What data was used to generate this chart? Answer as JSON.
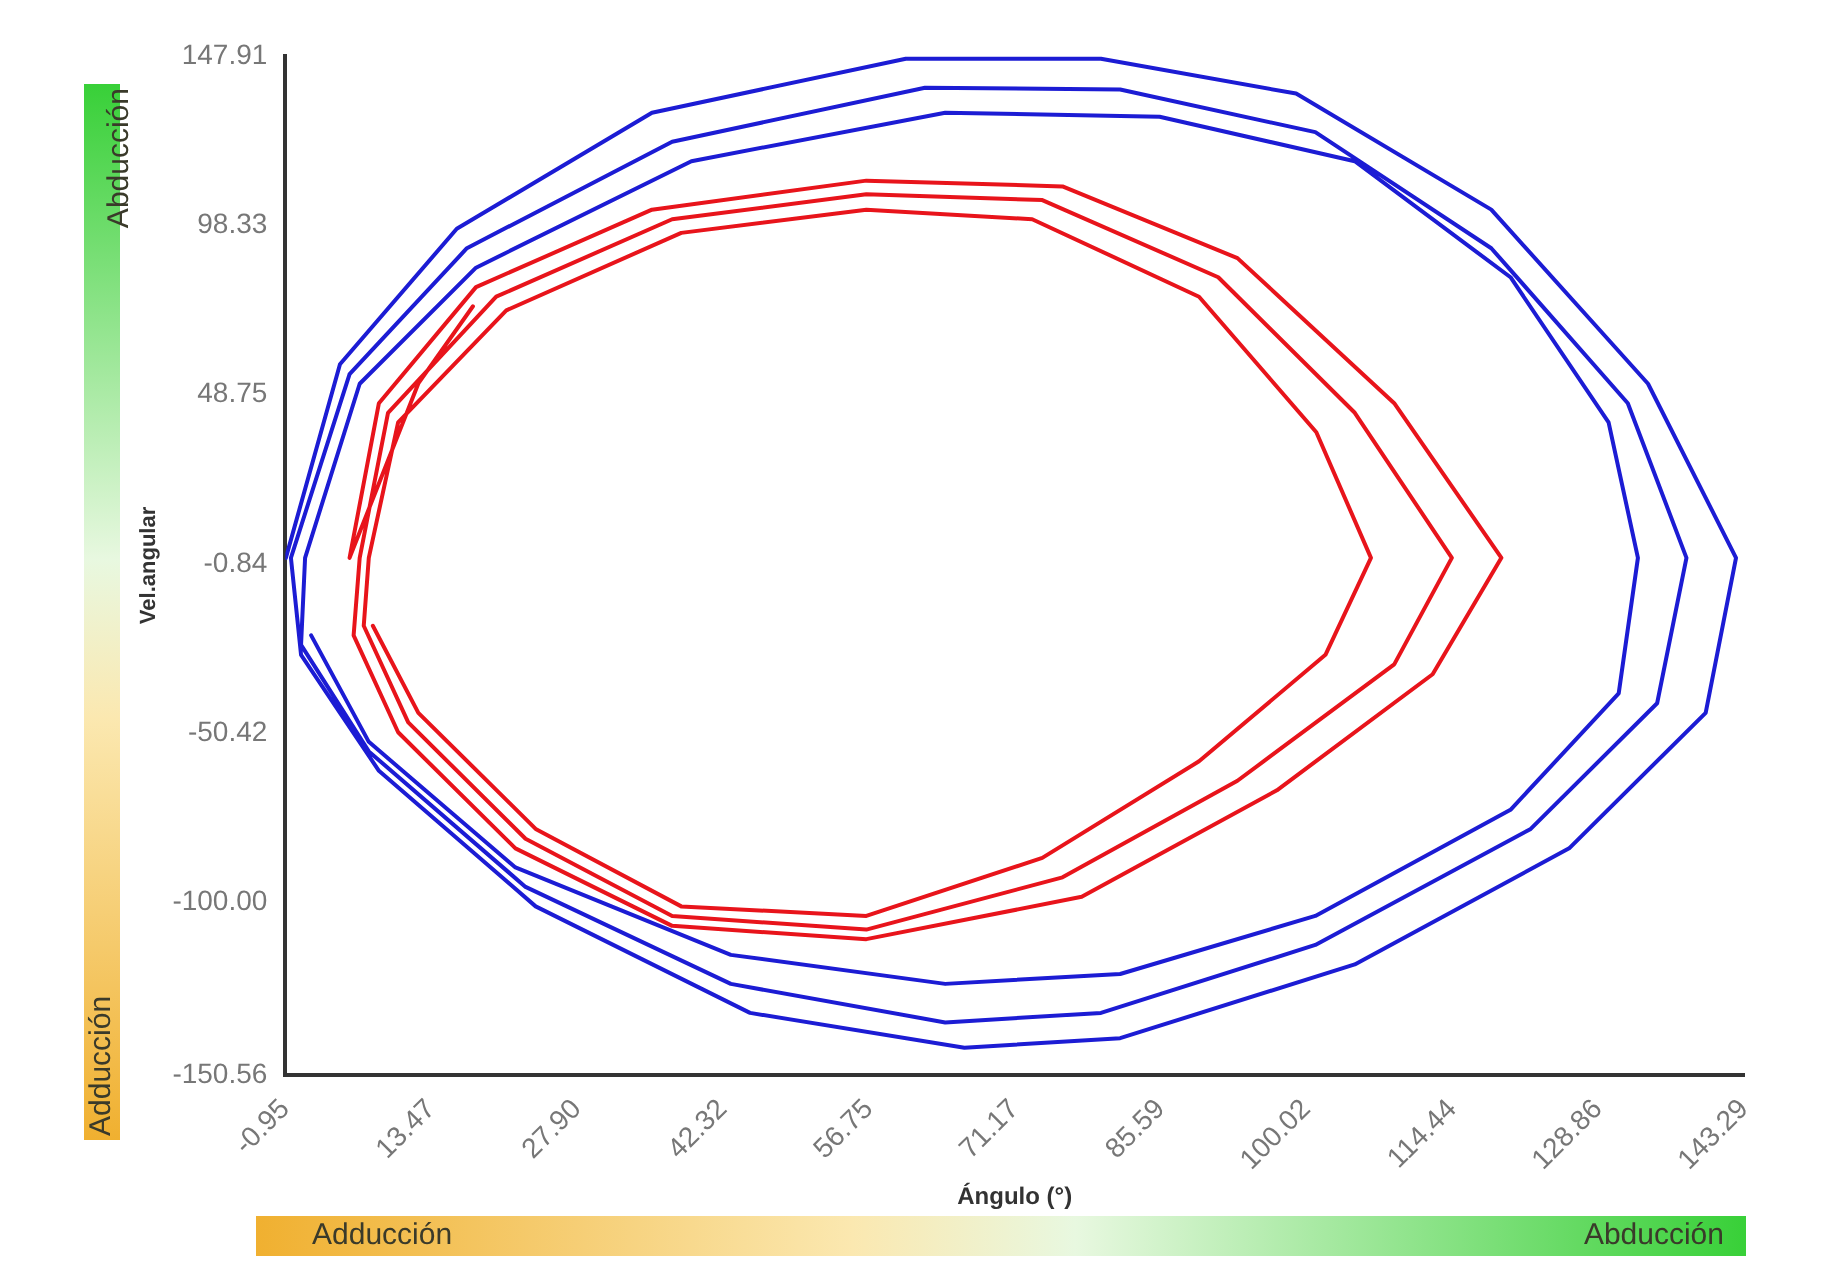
{
  "chart_data": {
    "type": "line",
    "xlabel": "Ángulo (°)",
    "ylabel": "Vel.angular",
    "annotations": [
      "Abducción",
      "Adducción",
      "Adducción",
      "Abducción"
    ],
    "xlim": [
      -0.95,
      143.29
    ],
    "xticks": [
      -0.95,
      13.47,
      {
        "value": 27.9,
        "label": "27.90"
      },
      42.32,
      56.75,
      71.17,
      85.59,
      100.02,
      114.44,
      128.86,
      143.29
    ],
    "ylim": [
      -150.56,
      147.91
    ],
    "yticks": [
      -150.56,
      {
        "value": -100,
        "label": "-100.00"
      },
      -50.42,
      -0.84,
      48.75,
      98.33,
      147.91
    ],
    "grid": false,
    "legend": false,
    "marker": "none",
    "line_style": "solid",
    "series": [
      {
        "color": "#1c1cd4",
        "x": [
          -0.9,
          4.45,
          16.0,
          35.3,
          60.4,
          79.7,
          99.0,
          118.3,
          133.8,
          142.5,
          139.5,
          126.0,
          104.8,
          81.6,
          66.2,
          45.0,
          23.8,
          8.3,
          0.6,
          -0.4,
          5.4,
          17.0,
          37.3,
          62.3,
          81.6,
          100.9,
          118.3,
          131.8,
          137.6,
          134.7,
          122.2,
          100.9,
          79.7,
          64.3,
          43.1,
          22.8,
          7.3,
          0.6,
          1.0,
          6.4,
          17.9,
          39.2,
          64.3,
          85.5,
          104.8,
          120.2,
          129.9,
          132.8,
          130.9,
          120.2,
          100.9,
          81.6,
          64.3,
          43.1,
          21.8,
          7.3,
          1.6
        ],
        "values": [
          0.9,
          57.6,
          97.3,
          131.3,
          147.1,
          147.1,
          136.9,
          102.9,
          51.9,
          0.9,
          -44.5,
          -84.2,
          -118.2,
          -139.8,
          -142.6,
          -132.4,
          -101.2,
          -61.5,
          -27.5,
          0.9,
          54.7,
          91.6,
          122.8,
          138.6,
          138.1,
          125.6,
          91.6,
          46.2,
          0.9,
          -41.7,
          -78.5,
          -112.5,
          -132.4,
          -135.2,
          -123.9,
          -95.5,
          -55.8,
          -24.6,
          0.9,
          51.9,
          85.9,
          117.1,
          131.3,
          130.1,
          117.1,
          83.1,
          40.6,
          0.9,
          -38.8,
          -72.9,
          -104.0,
          -121.0,
          -123.9,
          -115.4,
          -89.8,
          -53.0,
          -21.8
        ]
      },
      {
        "color": "#e8141b",
        "x": [
          17.6,
          12.2,
          5.4,
          8.3,
          17.9,
          35.3,
          56.5,
          75.9,
          93.2,
          108.7,
          119.3,
          112.5,
          97.1,
          77.8,
          56.5,
          37.3,
          21.8,
          10.2,
          5.8,
          6.4,
          9.2,
          19.9,
          37.3,
          56.5,
          73.9,
          91.3,
          104.8,
          114.4,
          108.7,
          93.2,
          75.9,
          56.5,
          37.3,
          22.8,
          11.2,
          6.8,
          7.3,
          10.2,
          20.9,
          38.2,
          56.5,
          72.9,
          89.4,
          101.0,
          106.4,
          101.9,
          89.4,
          73.9,
          56.5,
          38.2,
          23.8,
          12.2,
          7.7
        ],
        "values": [
          74.6,
          52.0,
          0.9,
          46.2,
          80.2,
          102.9,
          111.4,
          109.7,
          88.7,
          46.2,
          0.9,
          -33.2,
          -67.2,
          -98.4,
          -110.8,
          -106.9,
          -84.2,
          -50.2,
          -21.8,
          0.9,
          43.4,
          77.4,
          100.1,
          107.4,
          105.7,
          83.1,
          43.4,
          0.9,
          -30.3,
          -64.4,
          -92.7,
          -108.0,
          -104.0,
          -81.4,
          -47.3,
          -19.0,
          0.9,
          40.6,
          73.4,
          96.1,
          102.9,
          100.1,
          77.4,
          37.7,
          0.9,
          -27.5,
          -58.7,
          -87.0,
          -104.0,
          -101.2,
          -78.5,
          -44.5,
          -19.0
        ]
      }
    ]
  }
}
